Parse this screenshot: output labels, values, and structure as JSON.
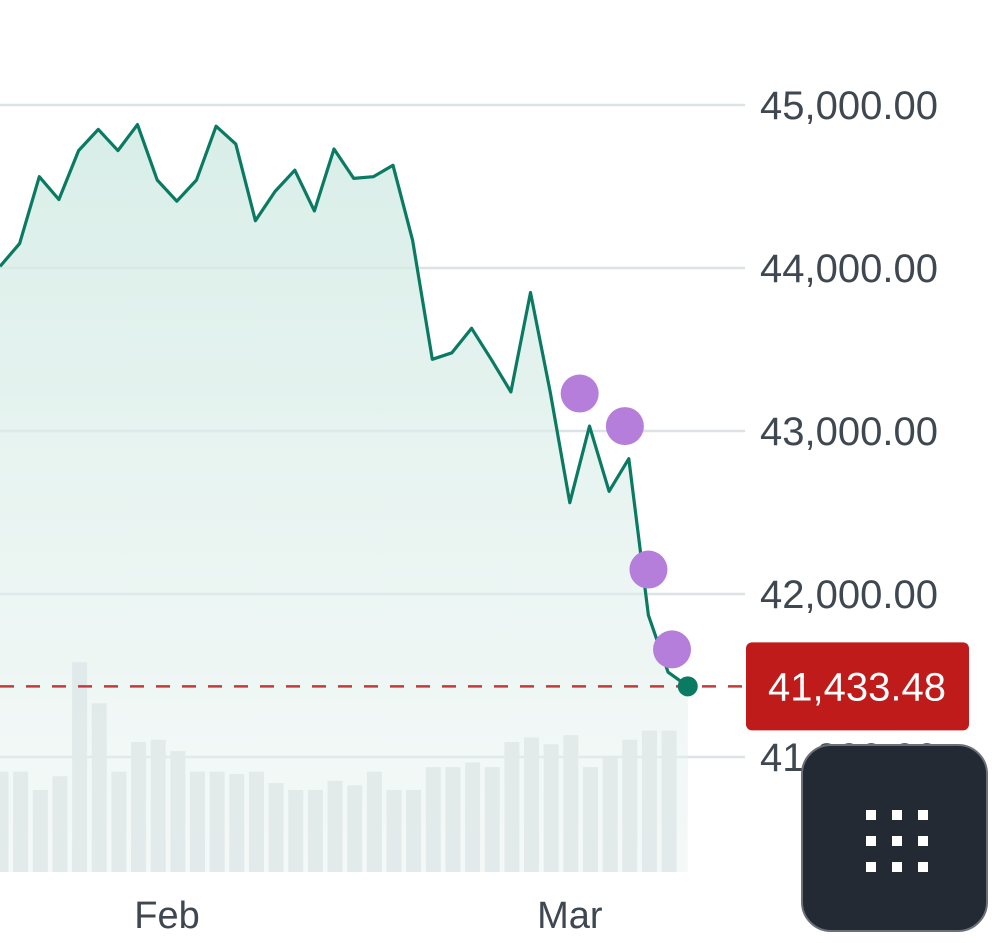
{
  "chart_data": {
    "type": "line",
    "series": [
      {
        "style": "line-area",
        "color": "#0b7a63",
        "fill": "#d2ebe4",
        "points": [
          {
            "x": 0,
            "y": 44010
          },
          {
            "x": 1,
            "y": 44150
          },
          {
            "x": 2,
            "y": 44560
          },
          {
            "x": 3,
            "y": 44420
          },
          {
            "x": 4,
            "y": 44720
          },
          {
            "x": 5,
            "y": 44850
          },
          {
            "x": 6,
            "y": 44720
          },
          {
            "x": 7,
            "y": 44880
          },
          {
            "x": 8,
            "y": 44540
          },
          {
            "x": 9,
            "y": 44410
          },
          {
            "x": 10,
            "y": 44540
          },
          {
            "x": 11,
            "y": 44870
          },
          {
            "x": 12,
            "y": 44760
          },
          {
            "x": 13,
            "y": 44290
          },
          {
            "x": 14,
            "y": 44470
          },
          {
            "x": 15,
            "y": 44600
          },
          {
            "x": 16,
            "y": 44350
          },
          {
            "x": 17,
            "y": 44730
          },
          {
            "x": 18,
            "y": 44550
          },
          {
            "x": 19,
            "y": 44560
          },
          {
            "x": 20,
            "y": 44630
          },
          {
            "x": 21,
            "y": 44170
          },
          {
            "x": 22,
            "y": 43440
          },
          {
            "x": 23,
            "y": 43480
          },
          {
            "x": 24,
            "y": 43630
          },
          {
            "x": 25,
            "y": 43440
          },
          {
            "x": 26,
            "y": 43240
          },
          {
            "x": 27,
            "y": 43850
          },
          {
            "x": 28,
            "y": 43240
          },
          {
            "x": 29,
            "y": 42560
          },
          {
            "x": 30,
            "y": 43030
          },
          {
            "x": 31,
            "y": 42630
          },
          {
            "x": 32,
            "y": 42830
          },
          {
            "x": 33,
            "y": 41870
          },
          {
            "x": 34,
            "y": 41520
          },
          {
            "x": 35,
            "y": 41433.48
          }
        ]
      }
    ],
    "volume": [
      4.4,
      4.4,
      3.6,
      4.2,
      9.2,
      7.4,
      4.4,
      5.7,
      5.8,
      5.3,
      4.4,
      4.4,
      4.3,
      4.4,
      3.9,
      3.6,
      3.6,
      4.0,
      3.8,
      4.4,
      3.6,
      3.6,
      4.6,
      4.6,
      4.8,
      4.6,
      5.7,
      5.9,
      5.6,
      6.0,
      4.6,
      5.0,
      5.8,
      6.2,
      6.2
    ],
    "markers": [
      {
        "x": 29.5,
        "y": 43230
      },
      {
        "x": 31.8,
        "y": 43030
      },
      {
        "x": 33.0,
        "y": 42150
      },
      {
        "x": 34.2,
        "y": 41660
      }
    ],
    "yaxis": {
      "ticks": [
        {
          "value": 45000,
          "label": "45,000.00"
        },
        {
          "value": 44000,
          "label": "44,000.00"
        },
        {
          "value": 43000,
          "label": "43,000.00"
        },
        {
          "value": 42000,
          "label": "42,000.00"
        },
        {
          "value": 41000,
          "label": "41,000.00"
        }
      ],
      "position": "right",
      "grid": true
    },
    "xaxis": {
      "ticks": [
        {
          "value": 8.5,
          "label": "Feb"
        },
        {
          "value": 29.0,
          "label": "Mar"
        }
      ]
    },
    "current_price": {
      "value": 41433.48,
      "label": "41,433.48",
      "color": "#bf1b1b"
    },
    "colors": {
      "line": "#0b7a63",
      "grid": "#dce2e5",
      "volume": "#dfe3e6",
      "marker": "#b57edb",
      "price_line": "#c53a3a"
    }
  },
  "toolbar": {
    "grid_button_icon": "grid-icon"
  }
}
